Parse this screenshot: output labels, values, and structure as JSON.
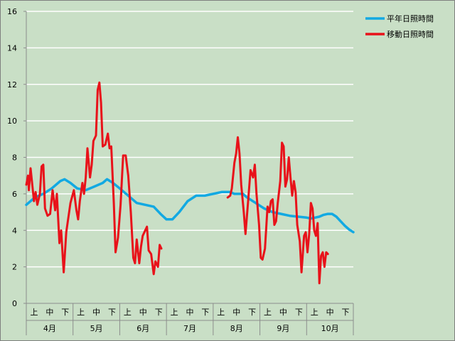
{
  "chart_data": {
    "type": "line",
    "title": "",
    "xlabel": "",
    "ylabel": "",
    "ylim": [
      0,
      16
    ],
    "yticks": [
      0,
      2,
      4,
      6,
      8,
      10,
      12,
      14,
      16
    ],
    "grid": true,
    "legend_position": "top-right",
    "months": [
      "4月",
      "5月",
      "6月",
      "7月",
      "8月",
      "9月",
      "10月"
    ],
    "periods": [
      "上",
      "中",
      "下"
    ],
    "x_unit": "day index from start of 4月 (0–213)",
    "series": [
      {
        "name": "平年日照時間",
        "color": "#12a9e2",
        "points": [
          [
            0,
            5.4
          ],
          [
            10,
            5.8
          ],
          [
            20,
            6.0
          ],
          [
            30,
            6.3
          ],
          [
            40,
            6.7
          ],
          [
            45,
            6.8
          ],
          [
            52,
            6.6
          ],
          [
            60,
            6.3
          ],
          [
            70,
            6.2
          ],
          [
            80,
            6.4
          ],
          [
            90,
            6.6
          ],
          [
            95,
            6.8
          ],
          [
            102,
            6.6
          ],
          [
            110,
            6.3
          ],
          [
            120,
            5.9
          ],
          [
            130,
            5.5
          ],
          [
            140,
            5.4
          ],
          [
            150,
            5.3
          ],
          [
            158,
            4.9
          ],
          [
            165,
            4.6
          ],
          [
            172,
            4.6
          ],
          [
            180,
            5.0
          ],
          [
            190,
            5.6
          ],
          [
            200,
            5.9
          ],
          [
            210,
            5.9
          ],
          [
            220,
            6.0
          ],
          [
            230,
            6.1
          ],
          [
            240,
            6.1
          ],
          [
            245,
            6.0
          ],
          [
            250,
            6.0
          ],
          [
            255,
            6.0
          ],
          [
            260,
            5.8
          ],
          [
            270,
            5.5
          ],
          [
            280,
            5.2
          ],
          [
            290,
            5.0
          ],
          [
            300,
            4.9
          ],
          [
            310,
            4.8
          ],
          [
            320,
            4.75
          ],
          [
            330,
            4.7
          ],
          [
            335,
            4.65
          ],
          [
            340,
            4.7
          ],
          [
            345,
            4.75
          ],
          [
            350,
            4.85
          ],
          [
            355,
            4.9
          ],
          [
            360,
            4.9
          ],
          [
            365,
            4.75
          ],
          [
            370,
            4.5
          ],
          [
            375,
            4.25
          ],
          [
            380,
            4.05
          ],
          [
            385,
            3.9
          ]
        ]
      },
      {
        "name": "移動日照時間",
        "color": "#e8121a",
        "points": [
          [
            0,
            6.5
          ],
          [
            2,
            7.0
          ],
          [
            3,
            6.2
          ],
          [
            5,
            7.4
          ],
          [
            7,
            6.5
          ],
          [
            9,
            5.6
          ],
          [
            11,
            6.1
          ],
          [
            13,
            5.4
          ],
          [
            16,
            6.0
          ],
          [
            18,
            7.5
          ],
          [
            20,
            7.6
          ],
          [
            22,
            5.2
          ],
          [
            25,
            4.8
          ],
          [
            28,
            4.9
          ],
          [
            31,
            6.2
          ],
          [
            34,
            5.1
          ],
          [
            36,
            6.0
          ],
          [
            39,
            3.3
          ],
          [
            41,
            4.0
          ],
          [
            44,
            1.7
          ],
          [
            47,
            3.9
          ],
          [
            52,
            5.5
          ],
          [
            56,
            6.2
          ],
          [
            59,
            5.1
          ],
          [
            61,
            4.6
          ],
          [
            63,
            5.6
          ],
          [
            66,
            6.6
          ],
          [
            68,
            6.0
          ],
          [
            70,
            6.9
          ],
          [
            72,
            8.5
          ],
          [
            75,
            6.9
          ],
          [
            77,
            7.6
          ],
          [
            79,
            8.9
          ],
          [
            82,
            9.2
          ],
          [
            84,
            11.7
          ],
          [
            86,
            12.1
          ],
          [
            88,
            11.0
          ],
          [
            90,
            8.6
          ],
          [
            93,
            8.7
          ],
          [
            96,
            9.3
          ],
          [
            98,
            8.5
          ],
          [
            100,
            8.6
          ],
          [
            103,
            5.5
          ],
          [
            105,
            2.8
          ],
          [
            108,
            3.6
          ],
          [
            111,
            5.4
          ],
          [
            114,
            8.1
          ],
          [
            117,
            8.1
          ],
          [
            120,
            7.0
          ],
          [
            123,
            5.0
          ],
          [
            126,
            2.5
          ],
          [
            128,
            2.2
          ],
          [
            130,
            3.5
          ],
          [
            133,
            2.2
          ],
          [
            135,
            3.1
          ],
          [
            137,
            3.7
          ],
          [
            140,
            4.0
          ],
          [
            142,
            4.2
          ],
          [
            144,
            2.9
          ],
          [
            147,
            2.7
          ],
          [
            150,
            1.6
          ],
          [
            152,
            2.3
          ],
          [
            155,
            2.0
          ],
          [
            157,
            3.2
          ],
          [
            159,
            3.0
          ],
          [
            237,
            5.8
          ],
          [
            240,
            5.9
          ],
          [
            242,
            6.3
          ],
          [
            245,
            7.7
          ],
          [
            247,
            8.2
          ],
          [
            249,
            9.1
          ],
          [
            251,
            8.2
          ],
          [
            253,
            6.5
          ],
          [
            256,
            5.0
          ],
          [
            258,
            3.8
          ],
          [
            261,
            5.5
          ],
          [
            264,
            7.3
          ],
          [
            267,
            6.9
          ],
          [
            269,
            7.6
          ],
          [
            271,
            6.0
          ],
          [
            274,
            4.3
          ],
          [
            276,
            2.5
          ],
          [
            278,
            2.4
          ],
          [
            281,
            3.0
          ],
          [
            284,
            5.3
          ],
          [
            286,
            5.0
          ],
          [
            288,
            5.6
          ],
          [
            290,
            5.7
          ],
          [
            292,
            4.3
          ],
          [
            294,
            4.5
          ],
          [
            296,
            5.5
          ],
          [
            299,
            6.7
          ],
          [
            301,
            8.8
          ],
          [
            303,
            8.6
          ],
          [
            305,
            6.4
          ],
          [
            307,
            6.8
          ],
          [
            309,
            8.0
          ],
          [
            311,
            6.9
          ],
          [
            313,
            5.9
          ],
          [
            315,
            6.7
          ],
          [
            317,
            6.1
          ],
          [
            319,
            4.3
          ],
          [
            322,
            3.4
          ],
          [
            324,
            1.7
          ],
          [
            327,
            3.7
          ],
          [
            329,
            3.9
          ],
          [
            331,
            2.8
          ],
          [
            333,
            3.8
          ],
          [
            335,
            5.5
          ],
          [
            337,
            5.2
          ],
          [
            339,
            4.0
          ],
          [
            341,
            3.7
          ],
          [
            343,
            4.4
          ],
          [
            345,
            1.1
          ],
          [
            347,
            2.6
          ],
          [
            349,
            2.8
          ],
          [
            351,
            2.0
          ],
          [
            353,
            2.8
          ],
          [
            355,
            2.7
          ]
        ]
      }
    ]
  }
}
